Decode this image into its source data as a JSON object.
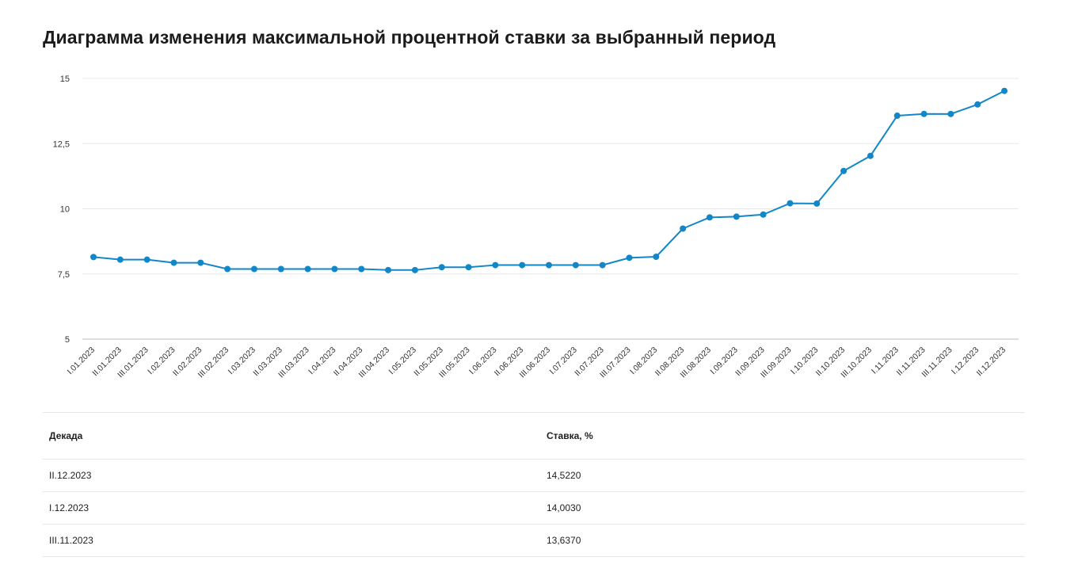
{
  "page_title": "Диаграмма изменения максимальной процентной ставки за выбранный период",
  "chart_data": {
    "type": "line",
    "title": "",
    "xlabel": "",
    "ylabel": "",
    "ylim": [
      5,
      15
    ],
    "yticks": [
      "15",
      "12,5",
      "10",
      "7,5",
      "5"
    ],
    "ytick_values": [
      15,
      12.5,
      10,
      7.5,
      5
    ],
    "grid": true,
    "line_color": "#1287c8",
    "categories": [
      "I.01.2023",
      "II.01.2023",
      "III.01.2023",
      "I.02.2023",
      "II.02.2023",
      "III.02.2023",
      "I.03.2023",
      "II.03.2023",
      "III.03.2023",
      "I.04.2023",
      "II.04.2023",
      "III.04.2023",
      "I.05.2023",
      "II.05.2023",
      "III.05.2023",
      "I.06.2023",
      "II.06.2023",
      "III.06.2023",
      "I.07.2023",
      "II.07.2023",
      "III.07.2023",
      "I.08.2023",
      "II.08.2023",
      "III.08.2023",
      "I.09.2023",
      "II.09.2023",
      "III.09.2023",
      "I.10.2023",
      "II.10.2023",
      "III.10.2023",
      "I.11.2023",
      "II.11.2023",
      "III.11.2023",
      "I.12.2023",
      "II.12.2023"
    ],
    "series": [
      {
        "values": [
          8.15,
          8.05,
          8.05,
          7.93,
          7.93,
          7.69,
          7.69,
          7.69,
          7.69,
          7.69,
          7.69,
          7.65,
          7.65,
          7.76,
          7.76,
          7.84,
          7.84,
          7.84,
          7.84,
          7.84,
          8.12,
          8.16,
          9.24,
          9.67,
          9.7,
          9.78,
          10.21,
          10.2,
          11.45,
          12.03,
          13.57,
          13.64,
          13.637,
          14.003,
          14.522
        ]
      }
    ]
  },
  "table": {
    "headers": [
      "Декада",
      "Ставка, %"
    ],
    "rows": [
      [
        "II.12.2023",
        "14,5220"
      ],
      [
        "I.12.2023",
        "14,0030"
      ],
      [
        "III.11.2023",
        "13,6370"
      ]
    ]
  }
}
